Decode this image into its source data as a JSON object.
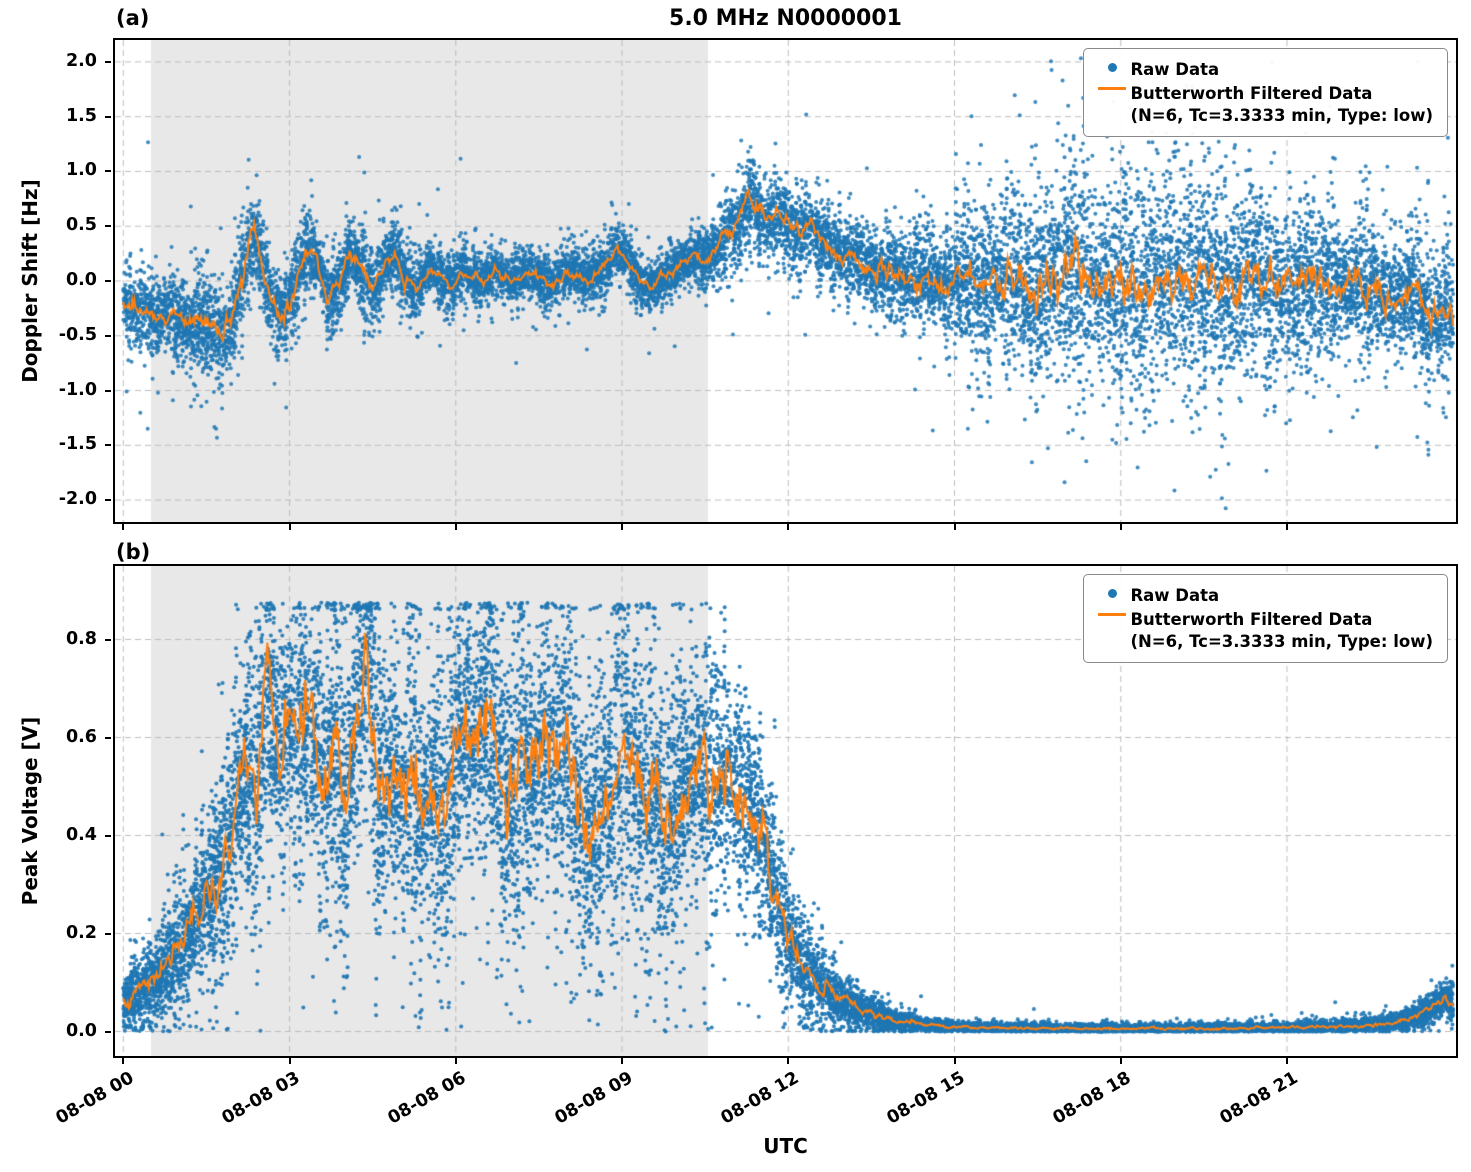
{
  "title": "5.0 MHz N0000001",
  "x_axis": {
    "label": "UTC",
    "range_hours": [
      -0.15,
      24.05
    ],
    "tick_hours": [
      0,
      3,
      6,
      9,
      12,
      15,
      18,
      21
    ],
    "tick_labels": [
      "08-08 00",
      "08-08 03",
      "08-08 06",
      "08-08 09",
      "08-08 12",
      "08-08 15",
      "08-08 18",
      "08-08 21"
    ]
  },
  "legend": {
    "raw_label": "Raw Data",
    "filtered_label": "Butterworth Filtered Data",
    "filtered_params": "(N=6, Tc=3.3333 min, Type: low)"
  },
  "colors": {
    "raw": "#1f77b4",
    "filtered": "#ff7f0e",
    "shade": "#e8e8e8",
    "grid": "#bdbdbd",
    "axis": "#000000"
  },
  "shaded_region_hours": [
    0.5,
    10.55
  ],
  "chart_data": [
    {
      "type": "scatter",
      "panel_label": "(a)",
      "ylabel": "Doppler Shift [Hz]",
      "ylim": [
        -2.2,
        2.2
      ],
      "ytick_values": [
        2.0,
        1.5,
        1.0,
        0.5,
        0.0,
        -0.5,
        -1.0,
        -1.5,
        -2.0
      ],
      "ytick_labels": [
        "2.0",
        "1.5",
        "1.0",
        "0.5",
        "0.0",
        "-0.5",
        "-1.0",
        "-1.5",
        "-2.0"
      ],
      "grid": true,
      "legend_position": "upper right",
      "series": [
        {
          "name": "Raw Data",
          "render": "scatter-envelope",
          "spread_profile": [
            [
              0,
              0.28
            ],
            [
              0.8,
              0.3
            ],
            [
              1.6,
              0.38
            ],
            [
              2.4,
              0.35
            ],
            [
              3.2,
              0.32
            ],
            [
              4.0,
              0.3
            ],
            [
              4.8,
              0.28
            ],
            [
              5.6,
              0.22
            ],
            [
              6.4,
              0.2
            ],
            [
              7.2,
              0.2
            ],
            [
              8.0,
              0.2
            ],
            [
              8.8,
              0.22
            ],
            [
              9.6,
              0.2
            ],
            [
              10.4,
              0.22
            ],
            [
              11.0,
              0.28
            ],
            [
              11.6,
              0.3
            ],
            [
              12.4,
              0.3
            ],
            [
              13.2,
              0.3
            ],
            [
              14.0,
              0.33
            ],
            [
              14.8,
              0.4
            ],
            [
              15.5,
              0.55
            ],
            [
              16.2,
              0.7
            ],
            [
              17.0,
              0.8
            ],
            [
              18.0,
              0.85
            ],
            [
              19.0,
              0.8
            ],
            [
              20.0,
              0.75
            ],
            [
              21.0,
              0.68
            ],
            [
              22.0,
              0.55
            ],
            [
              23.0,
              0.5
            ],
            [
              24.0,
              0.45
            ]
          ]
        },
        {
          "name": "Butterworth Filtered Data (N=6, Tc=3.3333 min, Type: low)",
          "render": "line",
          "points": [
            [
              0,
              -0.2
            ],
            [
              0.3,
              -0.28
            ],
            [
              0.6,
              -0.33
            ],
            [
              0.9,
              -0.3
            ],
            [
              1.2,
              -0.42
            ],
            [
              1.5,
              -0.33
            ],
            [
              1.8,
              -0.5
            ],
            [
              2.0,
              -0.28
            ],
            [
              2.2,
              0.15
            ],
            [
              2.35,
              0.45
            ],
            [
              2.5,
              0.15
            ],
            [
              2.7,
              -0.2
            ],
            [
              2.9,
              -0.32
            ],
            [
              3.1,
              -0.05
            ],
            [
              3.3,
              0.28
            ],
            [
              3.5,
              0.18
            ],
            [
              3.7,
              -0.15
            ],
            [
              3.9,
              -0.05
            ],
            [
              4.1,
              0.28
            ],
            [
              4.3,
              0.1
            ],
            [
              4.5,
              -0.12
            ],
            [
              4.7,
              0.15
            ],
            [
              4.9,
              0.25
            ],
            [
              5.1,
              0.02
            ],
            [
              5.3,
              -0.1
            ],
            [
              5.5,
              0.12
            ],
            [
              5.7,
              0.05
            ],
            [
              5.9,
              -0.03
            ],
            [
              6.1,
              0.1
            ],
            [
              6.3,
              0.04
            ],
            [
              6.5,
              0.0
            ],
            [
              6.7,
              0.1
            ],
            [
              6.9,
              0.03
            ],
            [
              7.1,
              0.0
            ],
            [
              7.3,
              0.1
            ],
            [
              7.5,
              0.02
            ],
            [
              7.7,
              -0.04
            ],
            [
              7.9,
              0.05
            ],
            [
              8.1,
              0.1
            ],
            [
              8.3,
              0.0
            ],
            [
              8.5,
              0.05
            ],
            [
              8.7,
              0.12
            ],
            [
              8.9,
              0.28
            ],
            [
              9.1,
              0.2
            ],
            [
              9.3,
              0.0
            ],
            [
              9.5,
              -0.06
            ],
            [
              9.7,
              0.03
            ],
            [
              9.9,
              0.08
            ],
            [
              10.1,
              0.15
            ],
            [
              10.3,
              0.22
            ],
            [
              10.5,
              0.18
            ],
            [
              10.7,
              0.3
            ],
            [
              10.9,
              0.42
            ],
            [
              11.1,
              0.55
            ],
            [
              11.3,
              0.78
            ],
            [
              11.45,
              0.62
            ],
            [
              11.6,
              0.55
            ],
            [
              11.8,
              0.62
            ],
            [
              12.0,
              0.5
            ],
            [
              12.2,
              0.45
            ],
            [
              12.4,
              0.52
            ],
            [
              12.6,
              0.38
            ],
            [
              12.8,
              0.3
            ],
            [
              13.0,
              0.22
            ],
            [
              13.2,
              0.27
            ],
            [
              13.4,
              0.12
            ],
            [
              13.6,
              0.06
            ],
            [
              13.9,
              0.12
            ],
            [
              14.2,
              0.02
            ],
            [
              14.5,
              0.06
            ],
            [
              14.8,
              -0.04
            ],
            [
              15.2,
              0.02
            ],
            [
              15.6,
              -0.04
            ],
            [
              16.0,
              0.06
            ],
            [
              16.4,
              -0.08
            ],
            [
              16.8,
              0.02
            ],
            [
              17.2,
              0.1
            ],
            [
              17.6,
              -0.04
            ],
            [
              18.0,
              0.02
            ],
            [
              18.4,
              -0.1
            ],
            [
              18.8,
              0.06
            ],
            [
              19.2,
              -0.04
            ],
            [
              19.6,
              0.08
            ],
            [
              20.0,
              -0.08
            ],
            [
              20.3,
              0.12
            ],
            [
              20.6,
              -0.04
            ],
            [
              21.0,
              -0.1
            ],
            [
              21.4,
              0.06
            ],
            [
              21.8,
              -0.06
            ],
            [
              22.2,
              0.0
            ],
            [
              22.6,
              -0.08
            ],
            [
              23.0,
              -0.18
            ],
            [
              23.3,
              -0.08
            ],
            [
              23.6,
              -0.42
            ],
            [
              23.8,
              -0.25
            ],
            [
              24.0,
              -0.35
            ]
          ]
        }
      ]
    },
    {
      "type": "scatter",
      "panel_label": "(b)",
      "ylabel": "Peak Voltage [V]",
      "ylim": [
        -0.05,
        0.95
      ],
      "ytick_values": [
        0.8,
        0.6,
        0.4,
        0.2,
        0.0
      ],
      "ytick_labels": [
        "0.8",
        "0.6",
        "0.4",
        "0.2",
        "0.0"
      ],
      "grid": true,
      "legend_position": "upper right",
      "series": [
        {
          "name": "Raw Data",
          "render": "scatter-envelope",
          "spread_profile": [
            [
              0,
              0.035
            ],
            [
              0.5,
              0.05
            ],
            [
              1.0,
              0.07
            ],
            [
              1.5,
              0.1
            ],
            [
              2.0,
              0.14
            ],
            [
              2.5,
              0.17
            ],
            [
              3.0,
              0.18
            ],
            [
              5.0,
              0.18
            ],
            [
              7.0,
              0.18
            ],
            [
              9.0,
              0.18
            ],
            [
              10.0,
              0.17
            ],
            [
              10.8,
              0.15
            ],
            [
              11.4,
              0.12
            ],
            [
              11.9,
              0.08
            ],
            [
              12.4,
              0.05
            ],
            [
              13.0,
              0.03
            ],
            [
              14.0,
              0.012
            ],
            [
              15.0,
              0.006
            ],
            [
              18.0,
              0.005
            ],
            [
              21.0,
              0.006
            ],
            [
              22.5,
              0.008
            ],
            [
              23.2,
              0.012
            ],
            [
              23.7,
              0.018
            ],
            [
              24.0,
              0.022
            ]
          ]
        },
        {
          "name": "Butterworth Filtered Data (N=6, Tc=3.3333 min, Type: low)",
          "render": "line",
          "points": [
            [
              0,
              0.06
            ],
            [
              0.3,
              0.08
            ],
            [
              0.6,
              0.11
            ],
            [
              0.9,
              0.15
            ],
            [
              1.2,
              0.2
            ],
            [
              1.5,
              0.27
            ],
            [
              1.8,
              0.33
            ],
            [
              2.0,
              0.44
            ],
            [
              2.2,
              0.52
            ],
            [
              2.4,
              0.48
            ],
            [
              2.6,
              0.72
            ],
            [
              2.8,
              0.55
            ],
            [
              3.0,
              0.62
            ],
            [
              3.2,
              0.58
            ],
            [
              3.4,
              0.66
            ],
            [
              3.6,
              0.5
            ],
            [
              3.8,
              0.62
            ],
            [
              4.0,
              0.46
            ],
            [
              4.2,
              0.65
            ],
            [
              4.4,
              0.78
            ],
            [
              4.6,
              0.52
            ],
            [
              4.8,
              0.56
            ],
            [
              5.0,
              0.47
            ],
            [
              5.2,
              0.52
            ],
            [
              5.4,
              0.44
            ],
            [
              5.6,
              0.5
            ],
            [
              5.8,
              0.42
            ],
            [
              6.0,
              0.56
            ],
            [
              6.2,
              0.64
            ],
            [
              6.4,
              0.58
            ],
            [
              6.6,
              0.68
            ],
            [
              6.8,
              0.52
            ],
            [
              7.0,
              0.46
            ],
            [
              7.2,
              0.58
            ],
            [
              7.4,
              0.52
            ],
            [
              7.6,
              0.62
            ],
            [
              7.8,
              0.56
            ],
            [
              8.0,
              0.6
            ],
            [
              8.2,
              0.45
            ],
            [
              8.4,
              0.4
            ],
            [
              8.6,
              0.45
            ],
            [
              8.8,
              0.5
            ],
            [
              9.0,
              0.58
            ],
            [
              9.2,
              0.52
            ],
            [
              9.4,
              0.46
            ],
            [
              9.6,
              0.5
            ],
            [
              9.8,
              0.4
            ],
            [
              10.0,
              0.46
            ],
            [
              10.2,
              0.5
            ],
            [
              10.4,
              0.54
            ],
            [
              10.6,
              0.48
            ],
            [
              10.8,
              0.53
            ],
            [
              11.0,
              0.5
            ],
            [
              11.2,
              0.46
            ],
            [
              11.4,
              0.44
            ],
            [
              11.6,
              0.36
            ],
            [
              11.8,
              0.27
            ],
            [
              12.0,
              0.19
            ],
            [
              12.3,
              0.13
            ],
            [
              12.6,
              0.09
            ],
            [
              13.0,
              0.06
            ],
            [
              13.5,
              0.035
            ],
            [
              14.0,
              0.02
            ],
            [
              14.5,
              0.013
            ],
            [
              15.0,
              0.009
            ],
            [
              16.0,
              0.007
            ],
            [
              17.0,
              0.006
            ],
            [
              18.0,
              0.006
            ],
            [
              19.0,
              0.006
            ],
            [
              20.0,
              0.007
            ],
            [
              21.0,
              0.008
            ],
            [
              22.0,
              0.01
            ],
            [
              22.8,
              0.015
            ],
            [
              23.2,
              0.025
            ],
            [
              23.6,
              0.045
            ],
            [
              23.85,
              0.07
            ],
            [
              24.0,
              0.05
            ]
          ]
        }
      ]
    }
  ]
}
